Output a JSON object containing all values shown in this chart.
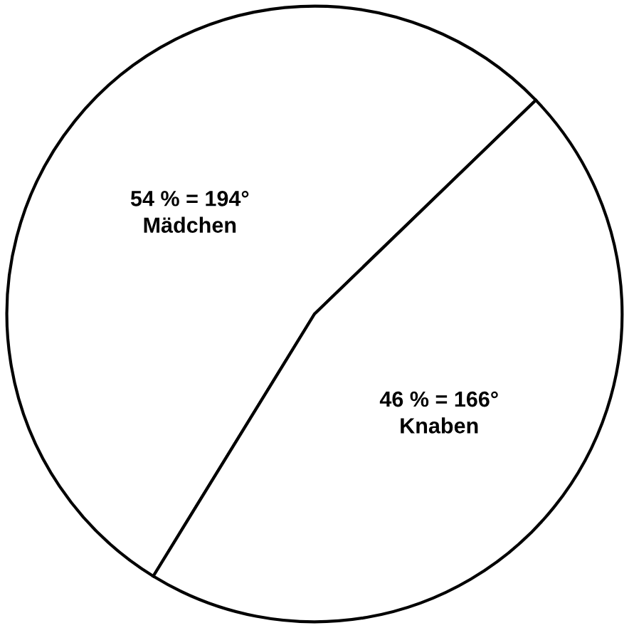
{
  "chart_data": {
    "type": "pie",
    "categories": [
      "Mädchen",
      "Knaben"
    ],
    "values": [
      54,
      46
    ],
    "colors": [
      "#ffffff",
      "#ffffff"
    ],
    "value_labels": [
      "54 % = 194°",
      "46 % = 166°"
    ]
  }
}
